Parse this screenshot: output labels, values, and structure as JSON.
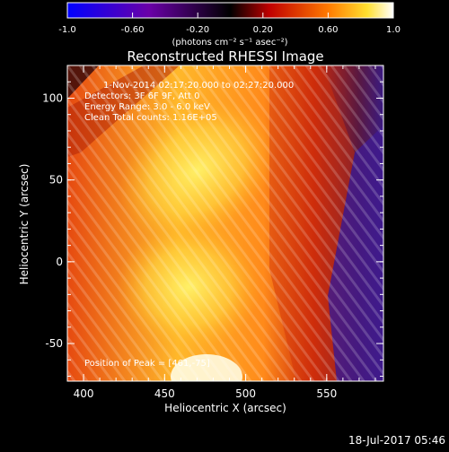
{
  "chart_data": {
    "type": "heatmap",
    "title": "Reconstructed RHESSI Image",
    "xlabel": "Heliocentric X (arcsec)",
    "ylabel": "Heliocentric Y (arcsec)",
    "xlim": [
      390,
      585
    ],
    "ylim": [
      -73,
      120
    ],
    "x_ticks": [
      400,
      450,
      500,
      550
    ],
    "y_ticks": [
      -50,
      0,
      50,
      100
    ],
    "colorbar": {
      "label": "(photons cm⁻² s⁻¹ asec⁻²)",
      "range": [
        -1.0,
        1.0
      ],
      "tick_labels": [
        "-1.0",
        "-0.60",
        "-0.20",
        "0.20",
        "0.60",
        "1.0"
      ]
    },
    "annotations": {
      "time_range": "1-Nov-2014 02:17:20.000 to 02:27:20.000",
      "detectors": "Detectors: 3F 6F 9F, Att 0",
      "energy": "Energy Range: 3.0 - 6.0 keV",
      "clean": "Clean    Total counts: 1.16E+05",
      "peak": "Position of Peak = [461,-75]"
    },
    "peak_position": [
      461,
      -75
    ]
  },
  "footer": {
    "timestamp": "18-Jul-2017 05:46"
  }
}
